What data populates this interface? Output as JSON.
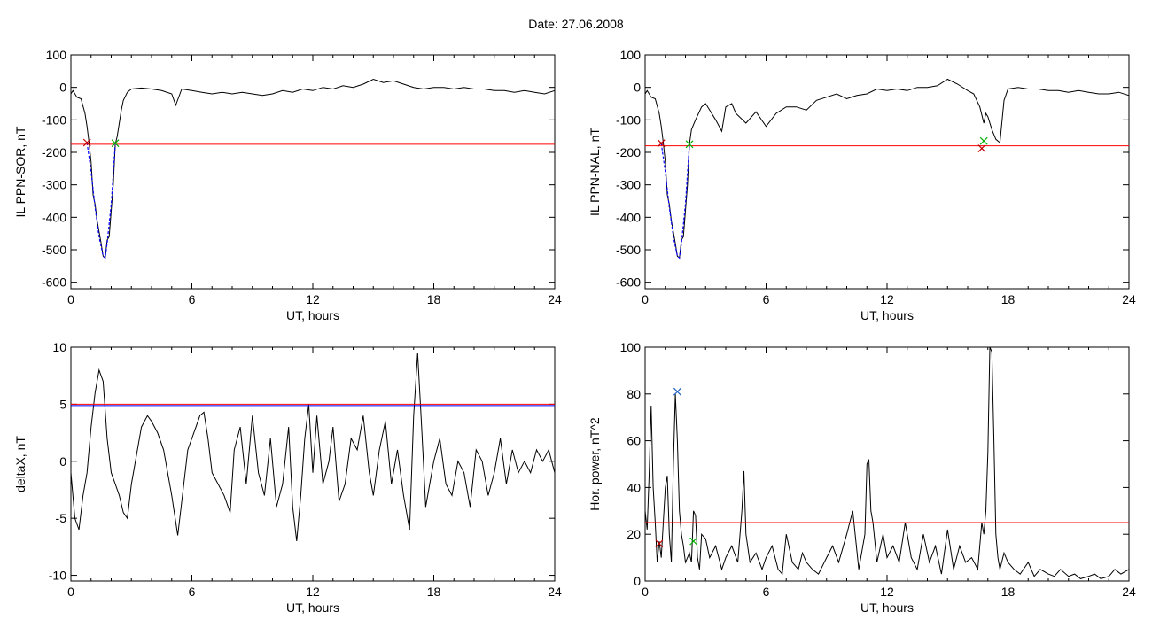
{
  "header": {
    "title": "Date:  27.06.2008"
  },
  "colors": {
    "threshold": "#ff0000",
    "fit": "#0000ff",
    "start_marker": "#c00000",
    "end_marker": "#00b000",
    "peak_marker": "#2060c0"
  },
  "chart_data": [
    {
      "id": "il-sor",
      "type": "line",
      "xlabel": "UT, hours",
      "ylabel": "IL PPN-SOR, nT",
      "xlim": [
        0,
        24
      ],
      "ylim": [
        -620,
        100
      ],
      "xticks": [
        0,
        6,
        12,
        18,
        24
      ],
      "yticks": [
        -600,
        -500,
        -400,
        -300,
        -200,
        -100,
        0,
        100
      ],
      "threshold": -175,
      "series": [
        {
          "x": [
            0,
            0.1,
            0.3,
            0.5,
            0.7,
            0.8,
            0.9,
            1.0,
            1.1,
            1.2,
            1.3,
            1.5,
            1.6,
            1.7,
            1.8,
            1.9,
            2.0,
            2.1,
            2.2,
            2.3,
            2.4,
            2.5,
            2.6,
            2.8,
            3.0,
            3.5,
            4.0,
            4.5,
            5.0,
            5.2,
            5.5,
            6.0,
            6.5,
            7.0,
            7.5,
            8.0,
            8.5,
            9.0,
            9.5,
            10.0,
            10.5,
            11.0,
            11.5,
            12.0,
            12.5,
            13.0,
            13.5,
            14.0,
            14.5,
            15.0,
            15.5,
            16.0,
            16.5,
            17.0,
            17.5,
            18.0,
            18.5,
            19.0,
            19.5,
            20.0,
            20.5,
            21.0,
            21.5,
            22.0,
            22.5,
            23.0,
            23.5,
            24.0
          ],
          "y": [
            -20,
            -10,
            -30,
            -35,
            -80,
            -120,
            -170,
            -230,
            -330,
            -360,
            -410,
            -480,
            -520,
            -525,
            -470,
            -460,
            -380,
            -300,
            -175,
            -150,
            -110,
            -70,
            -40,
            -15,
            -5,
            -2,
            -5,
            -10,
            -20,
            -55,
            -5,
            -10,
            -15,
            -20,
            -15,
            -20,
            -15,
            -20,
            -25,
            -20,
            -10,
            -15,
            -5,
            -10,
            0,
            -5,
            5,
            0,
            10,
            25,
            15,
            20,
            10,
            0,
            -5,
            0,
            0,
            -5,
            0,
            -5,
            -5,
            -10,
            -10,
            -15,
            -10,
            -15,
            -20,
            -10
          ]
        }
      ],
      "markers": [
        {
          "x": 0.8,
          "y": -170,
          "role": "start"
        },
        {
          "x": 2.2,
          "y": -172,
          "role": "end"
        }
      ],
      "fit": {
        "x": [
          0.8,
          1.0,
          1.2,
          1.4,
          1.6,
          1.7,
          1.8,
          2.0,
          2.2
        ],
        "y": [
          -170,
          -260,
          -370,
          -460,
          -520,
          -525,
          -480,
          -360,
          -172
        ]
      }
    },
    {
      "id": "il-nal",
      "type": "line",
      "xlabel": "UT, hours",
      "ylabel": "IL PPN-NAL, nT",
      "xlim": [
        0,
        24
      ],
      "ylim": [
        -620,
        100
      ],
      "xticks": [
        0,
        6,
        12,
        18,
        24
      ],
      "yticks": [
        -600,
        -500,
        -400,
        -300,
        -200,
        -100,
        0,
        100
      ],
      "threshold": -180,
      "series": [
        {
          "x": [
            0,
            0.1,
            0.3,
            0.5,
            0.7,
            0.8,
            0.9,
            1.0,
            1.1,
            1.2,
            1.3,
            1.5,
            1.6,
            1.7,
            1.8,
            1.9,
            2.0,
            2.1,
            2.2,
            2.3,
            2.5,
            2.8,
            3.0,
            3.2,
            3.5,
            3.8,
            4.0,
            4.3,
            4.5,
            5.0,
            5.5,
            6.0,
            6.5,
            7.0,
            7.5,
            8.0,
            8.5,
            9.0,
            9.5,
            10.0,
            10.5,
            11.0,
            11.5,
            12.0,
            12.5,
            13.0,
            13.5,
            14.0,
            14.5,
            15.0,
            15.5,
            16.0,
            16.3,
            16.6,
            16.8,
            16.9,
            17.0,
            17.2,
            17.4,
            17.6,
            17.8,
            18.0,
            18.5,
            19.0,
            19.5,
            20.0,
            20.5,
            21.0,
            21.5,
            22.0,
            22.5,
            23.0,
            23.5,
            24.0
          ],
          "y": [
            -20,
            -10,
            -30,
            -35,
            -80,
            -120,
            -170,
            -230,
            -330,
            -360,
            -410,
            -480,
            -520,
            -525,
            -470,
            -460,
            -380,
            -300,
            -175,
            -130,
            -100,
            -60,
            -50,
            -70,
            -100,
            -135,
            -60,
            -50,
            -80,
            -110,
            -75,
            -120,
            -80,
            -60,
            -60,
            -70,
            -40,
            -30,
            -20,
            -35,
            -25,
            -20,
            -5,
            -10,
            -5,
            -10,
            0,
            0,
            5,
            25,
            10,
            -10,
            -20,
            -60,
            -110,
            -80,
            -90,
            -130,
            -160,
            -170,
            -40,
            -5,
            0,
            -5,
            -5,
            -10,
            -10,
            -15,
            -10,
            -15,
            -20,
            -20,
            -15,
            -25
          ]
        }
      ],
      "markers": [
        {
          "x": 0.8,
          "y": -172,
          "role": "start"
        },
        {
          "x": 2.2,
          "y": -175,
          "role": "end"
        },
        {
          "x": 16.7,
          "y": -188,
          "role": "start"
        },
        {
          "x": 16.8,
          "y": -165,
          "role": "end"
        }
      ],
      "fit": {
        "x": [
          0.8,
          1.0,
          1.2,
          1.4,
          1.6,
          1.7,
          1.8,
          2.0,
          2.2
        ],
        "y": [
          -172,
          -260,
          -370,
          -460,
          -520,
          -525,
          -480,
          -360,
          -175
        ]
      }
    },
    {
      "id": "deltax",
      "type": "line",
      "xlabel": "UT, hours",
      "ylabel": "deltaX, nT",
      "xlim": [
        0,
        24
      ],
      "ylim": [
        -10.5,
        10
      ],
      "xticks": [
        0,
        6,
        12,
        18,
        24
      ],
      "yticks": [
        -10,
        -5,
        0,
        5,
        10
      ],
      "threshold": 5,
      "series": [
        {
          "x": [
            0,
            0.2,
            0.4,
            0.6,
            0.8,
            1.0,
            1.2,
            1.4,
            1.6,
            1.8,
            2.0,
            2.2,
            2.4,
            2.6,
            2.8,
            3.0,
            3.2,
            3.5,
            3.8,
            4.0,
            4.3,
            4.6,
            4.8,
            5.0,
            5.3,
            5.6,
            5.8,
            6.0,
            6.2,
            6.4,
            6.6,
            6.8,
            7.0,
            7.3,
            7.6,
            7.9,
            8.1,
            8.4,
            8.7,
            9.0,
            9.3,
            9.6,
            9.9,
            10.2,
            10.5,
            10.8,
            11.0,
            11.2,
            11.4,
            11.6,
            11.8,
            12.0,
            12.2,
            12.5,
            12.8,
            13.0,
            13.3,
            13.6,
            13.9,
            14.2,
            14.5,
            14.8,
            15.0,
            15.3,
            15.6,
            15.9,
            16.2,
            16.5,
            16.8,
            17.0,
            17.2,
            17.4,
            17.6,
            17.8,
            18.0,
            18.3,
            18.6,
            18.9,
            19.2,
            19.5,
            19.8,
            20.1,
            20.4,
            20.7,
            21.0,
            21.3,
            21.6,
            21.9,
            22.2,
            22.5,
            22.8,
            23.1,
            23.4,
            23.7,
            24.0
          ],
          "y": [
            -1,
            -5,
            -6,
            -3,
            -1,
            3,
            6,
            8,
            7,
            2,
            -1,
            -2,
            -3,
            -4.5,
            -5,
            -2,
            0,
            3,
            4,
            3.5,
            2.5,
            1,
            -1,
            -3,
            -6.5,
            -2,
            1,
            2,
            3,
            4,
            4.3,
            2,
            -1,
            -2,
            -3,
            -4.5,
            1,
            3,
            -2,
            4,
            -1,
            -3,
            2,
            -4,
            -2,
            3,
            -4,
            -7,
            -3,
            2,
            5,
            -1,
            4,
            -2,
            0,
            3,
            -3.5,
            -2,
            2,
            1,
            4,
            -1,
            -3,
            1,
            3.5,
            -2,
            1,
            -3,
            -6,
            4,
            9.5,
            3,
            -4,
            -2,
            0,
            2,
            -2,
            -3,
            0,
            -1,
            -4,
            1,
            0,
            -3,
            -1,
            2,
            -2,
            1,
            -1,
            0,
            -1,
            1,
            0,
            1,
            -1
          ]
        }
      ]
    },
    {
      "id": "hor-power",
      "type": "line",
      "xlabel": "UT, hours",
      "ylabel": "Hor. power, nT^2",
      "xlim": [
        0,
        24
      ],
      "ylim": [
        0,
        100
      ],
      "xticks": [
        0,
        6,
        12,
        18,
        24
      ],
      "yticks": [
        0,
        20,
        40,
        60,
        80,
        100
      ],
      "threshold": 25,
      "series": [
        {
          "x": [
            0,
            0.1,
            0.2,
            0.3,
            0.4,
            0.5,
            0.6,
            0.7,
            0.8,
            0.9,
            1.0,
            1.1,
            1.2,
            1.3,
            1.4,
            1.5,
            1.6,
            1.7,
            1.8,
            1.9,
            2.0,
            2.1,
            2.2,
            2.3,
            2.4,
            2.5,
            2.6,
            2.7,
            2.8,
            3.0,
            3.2,
            3.5,
            3.8,
            4.0,
            4.3,
            4.6,
            4.8,
            4.9,
            5.0,
            5.2,
            5.5,
            5.8,
            6.0,
            6.3,
            6.6,
            6.8,
            7.0,
            7.3,
            7.6,
            7.8,
            8.0,
            8.3,
            8.6,
            9.0,
            9.3,
            9.6,
            10.0,
            10.3,
            10.6,
            10.9,
            11.0,
            11.1,
            11.2,
            11.3,
            11.5,
            11.8,
            12.0,
            12.3,
            12.6,
            12.9,
            13.2,
            13.5,
            13.8,
            14.1,
            14.4,
            14.7,
            15.0,
            15.3,
            15.6,
            15.9,
            16.2,
            16.5,
            16.7,
            16.8,
            16.9,
            17.0,
            17.1,
            17.2,
            17.3,
            17.4,
            17.5,
            17.6,
            17.8,
            18.0,
            18.3,
            18.6,
            19.0,
            19.3,
            19.6,
            20.0,
            20.3,
            20.6,
            21.0,
            21.3,
            21.6,
            22.0,
            22.3,
            22.6,
            23.0,
            23.3,
            23.6,
            24.0
          ],
          "y": [
            30,
            22,
            45,
            75,
            40,
            25,
            8,
            17,
            10,
            25,
            40,
            45,
            20,
            8,
            50,
            80,
            60,
            30,
            20,
            15,
            8,
            10,
            12,
            8,
            30,
            28,
            10,
            5,
            20,
            18,
            10,
            15,
            5,
            10,
            15,
            8,
            30,
            47,
            20,
            8,
            12,
            5,
            10,
            15,
            5,
            3,
            20,
            8,
            5,
            12,
            8,
            5,
            3,
            10,
            15,
            8,
            20,
            30,
            5,
            20,
            50,
            52,
            30,
            25,
            8,
            20,
            10,
            15,
            8,
            25,
            10,
            5,
            20,
            8,
            15,
            3,
            22,
            5,
            15,
            8,
            10,
            5,
            25,
            20,
            30,
            55,
            100,
            98,
            60,
            20,
            10,
            5,
            12,
            8,
            5,
            3,
            8,
            2,
            5,
            3,
            2,
            5,
            2,
            3,
            1,
            2,
            3,
            1,
            2,
            5,
            3,
            5
          ]
        }
      ],
      "markers": [
        {
          "x": 0.7,
          "y": 16,
          "role": "start"
        },
        {
          "x": 1.6,
          "y": 81,
          "role": "peak"
        },
        {
          "x": 2.4,
          "y": 17,
          "role": "end"
        }
      ]
    }
  ]
}
